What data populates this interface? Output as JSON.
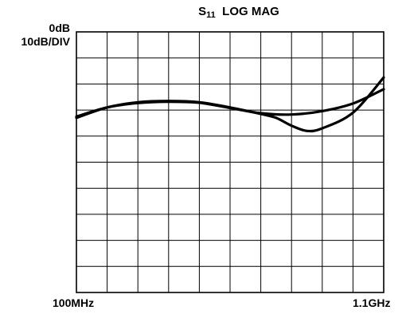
{
  "chart_data": {
    "type": "line",
    "title_main": "S",
    "title_sub": "11",
    "title_rest": "LOG MAG",
    "reference_label": "0dB",
    "scale_label": "10dB/DIV",
    "x_start_label": "100MHz",
    "x_stop_label": "1.1GHz",
    "xlim_mhz": [
      100,
      1100
    ],
    "ylim_db": [
      -100,
      0
    ],
    "x_divisions": 10,
    "y_divisions": 10,
    "grid": true,
    "series": [
      {
        "color": "#000000",
        "x": [
          100,
          200,
          300,
          400,
          500,
          600,
          700,
          750,
          800,
          850,
          900,
          1000,
          1100
        ],
        "y": [
          -33,
          -29,
          -27,
          -26.5,
          -27,
          -29,
          -31.5,
          -33,
          -36,
          -38,
          -37,
          -31,
          -17.5
        ]
      },
      {
        "color": "#000000",
        "x": [
          100,
          200,
          300,
          400,
          500,
          600,
          700,
          800,
          900,
          1000,
          1100
        ],
        "y": [
          -32.5,
          -29,
          -27.3,
          -26.8,
          -27.2,
          -29.2,
          -31.2,
          -31.7,
          -30.4,
          -27.5,
          -22
        ]
      }
    ]
  }
}
